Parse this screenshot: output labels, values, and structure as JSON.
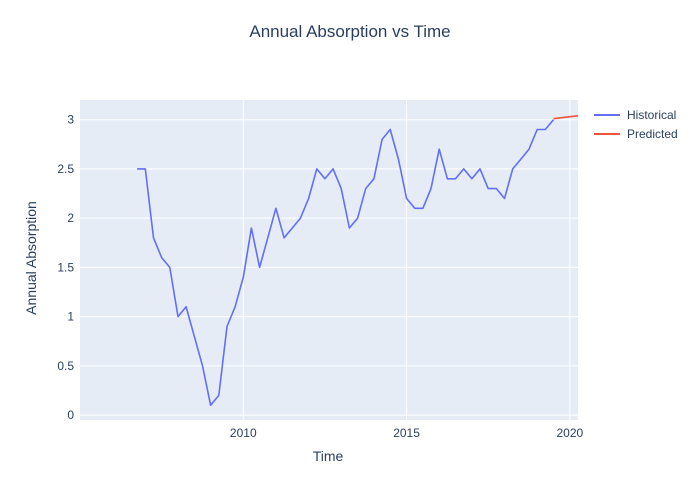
{
  "chart_data": {
    "type": "line",
    "title": "Annual Absorption vs Time",
    "xlabel": "Time",
    "ylabel": "Annual Absorption",
    "xlim": [
      2005.0,
      2020.25
    ],
    "ylim": [
      -0.05,
      3.2
    ],
    "x_ticks": [
      2010,
      2015,
      2020
    ],
    "y_ticks": [
      0,
      0.5,
      1,
      1.5,
      2,
      2.5,
      3
    ],
    "grid": true,
    "legend_position": "top-right",
    "series": [
      {
        "name": "Historical",
        "color": "#636efa",
        "x": [
          2006.75,
          2007.0,
          2007.25,
          2007.5,
          2007.75,
          2008.0,
          2008.25,
          2008.5,
          2008.75,
          2009.0,
          2009.25,
          2009.5,
          2009.75,
          2010.0,
          2010.25,
          2010.5,
          2010.75,
          2011.0,
          2011.25,
          2011.5,
          2011.75,
          2012.0,
          2012.25,
          2012.5,
          2012.75,
          2013.0,
          2013.25,
          2013.5,
          2013.75,
          2014.0,
          2014.25,
          2014.5,
          2014.75,
          2015.0,
          2015.25,
          2015.5,
          2015.75,
          2016.0,
          2016.25,
          2016.5,
          2016.75,
          2017.0,
          2017.25,
          2017.5,
          2017.75,
          2018.0,
          2018.25,
          2018.5,
          2018.75,
          2019.0,
          2019.25,
          2019.5
        ],
        "y": [
          2.5,
          2.5,
          1.8,
          1.6,
          1.5,
          1.0,
          1.1,
          0.8,
          0.5,
          0.1,
          0.2,
          0.9,
          1.1,
          1.4,
          1.9,
          1.5,
          1.8,
          2.1,
          1.8,
          1.9,
          2.0,
          2.2,
          2.5,
          2.4,
          2.5,
          2.3,
          1.9,
          2.0,
          2.3,
          2.4,
          2.8,
          2.9,
          2.6,
          2.2,
          2.1,
          2.1,
          2.3,
          2.7,
          2.4,
          2.4,
          2.5,
          2.4,
          2.5,
          2.3,
          2.3,
          2.2,
          2.5,
          2.6,
          2.7,
          2.9,
          2.9,
          3.0
        ]
      },
      {
        "name": "Predicted",
        "color": "#ef553b",
        "x": [
          2019.5,
          2019.75,
          2020.0,
          2020.25
        ],
        "y": [
          3.01,
          3.02,
          3.03,
          3.04
        ]
      }
    ]
  }
}
